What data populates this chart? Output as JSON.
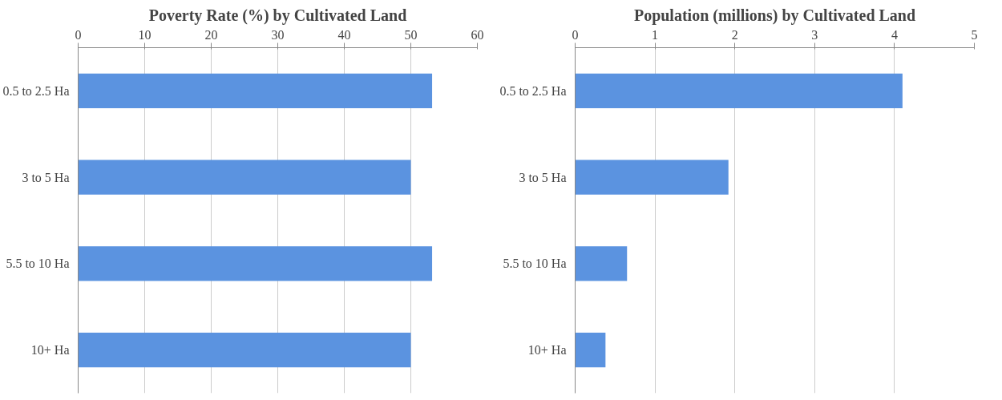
{
  "chart_data": [
    {
      "type": "bar",
      "orientation": "horizontal",
      "title": "Poverty Rate (%) by Cultivated Land",
      "categories": [
        "0.5 to 2.5 Ha",
        "3 to 5 Ha",
        "5.5 to 10 Ha",
        "10+ Ha"
      ],
      "values": [
        53.2,
        50,
        53.2,
        50
      ],
      "color": "#5b93e0",
      "xlim": [
        0,
        60
      ],
      "xticks": [
        0,
        10,
        20,
        30,
        40,
        50,
        60
      ],
      "grid": "x"
    },
    {
      "type": "bar",
      "orientation": "horizontal",
      "title": "Population (millions) by Cultivated Land",
      "categories": [
        "0.5 to 2.5 Ha",
        "3 to 5 Ha",
        "5.5 to 10 Ha",
        "10+ Ha"
      ],
      "values": [
        4.1,
        1.92,
        0.65,
        0.38
      ],
      "color": "#5b93e0",
      "xlim": [
        0,
        5
      ],
      "xticks": [
        0,
        1,
        2,
        3,
        4,
        5
      ],
      "grid": "x"
    }
  ]
}
